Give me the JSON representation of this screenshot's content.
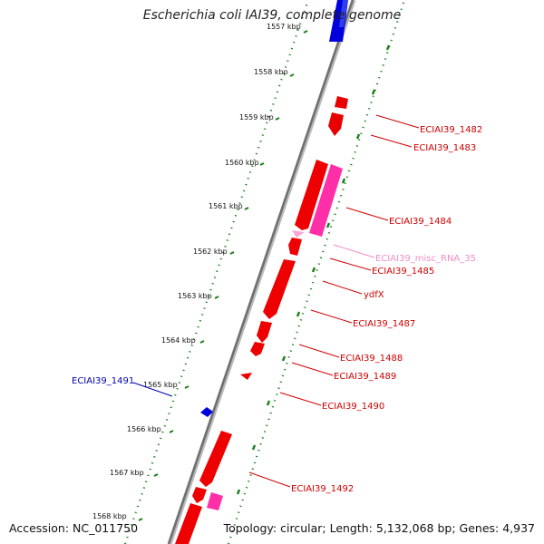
{
  "title": "Escherichia coli IAI39, complete genome",
  "accession": "Accession: NC_011750",
  "summary": "Topology: circular; Length: 5,132,068 bp; Genes: 4,937",
  "colors": {
    "forward_cds": "#ff0000",
    "reverse_cds": "#0000dd",
    "misc_rna": "#ff3cb4",
    "misc_rna_label": "#f08cc8",
    "ticks": "#1a7f1a",
    "backbone": "#888888"
  },
  "ticks": [
    {
      "label": "1557 kbp"
    },
    {
      "label": "1558 kbp"
    },
    {
      "label": "1559 kbp"
    },
    {
      "label": "1560 kbp"
    },
    {
      "label": "1561 kbp"
    },
    {
      "label": "1562 kbp"
    },
    {
      "label": "1563 kbp"
    },
    {
      "label": "1564 kbp"
    },
    {
      "label": "1565 kbp"
    },
    {
      "label": "1566 kbp"
    },
    {
      "label": "1567 kbp"
    },
    {
      "label": "1568 kbp"
    }
  ],
  "gene_labels": [
    {
      "name": "ECIAI39_1482",
      "strand": "forward"
    },
    {
      "name": "ECIAI39_1483",
      "strand": "forward"
    },
    {
      "name": "ECIAI39_1484",
      "strand": "forward"
    },
    {
      "name": "ECIAI39_misc_RNA_35",
      "strand": "misc_rna"
    },
    {
      "name": "ECIAI39_1485",
      "strand": "forward"
    },
    {
      "name": "ydfX",
      "strand": "forward"
    },
    {
      "name": "ECIAI39_1487",
      "strand": "forward"
    },
    {
      "name": "ECIAI39_1488",
      "strand": "forward"
    },
    {
      "name": "ECIAI39_1489",
      "strand": "forward"
    },
    {
      "name": "ECIAI39_1490",
      "strand": "forward"
    },
    {
      "name": "ECIAI39_1491",
      "strand": "reverse"
    },
    {
      "name": "ECIAI39_1492",
      "strand": "forward"
    }
  ]
}
